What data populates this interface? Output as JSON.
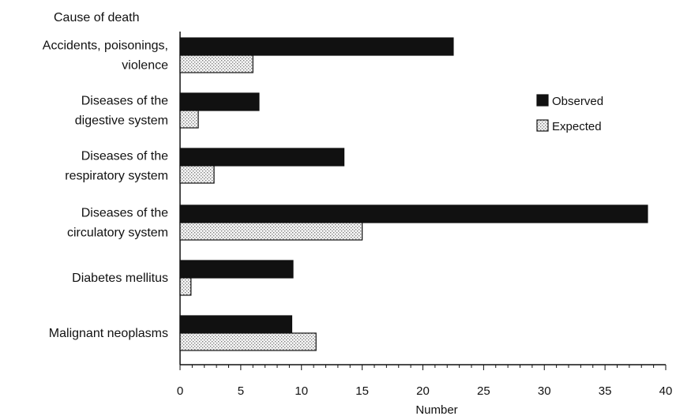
{
  "chart_data": {
    "type": "bar",
    "orientation": "horizontal",
    "y_title": "Cause of death",
    "xlabel": "Number",
    "xlim": [
      0,
      40
    ],
    "xticks": [
      0,
      5,
      10,
      15,
      20,
      25,
      30,
      35,
      40
    ],
    "categories": [
      [
        "Accidents, poisonings,",
        "violence"
      ],
      [
        "Diseases of the",
        "digestive system"
      ],
      [
        "Diseases of the",
        "respiratory system"
      ],
      [
        "Diseases of the",
        "circulatory system"
      ],
      [
        "Diabetes mellitus"
      ],
      [
        "Malignant neoplasms"
      ]
    ],
    "series": [
      {
        "name": "Observed",
        "values": [
          22.5,
          6.5,
          13.5,
          38.5,
          9.3,
          9.2
        ],
        "color": "#111111"
      },
      {
        "name": "Expected",
        "values": [
          6.0,
          1.5,
          2.8,
          15.0,
          0.9,
          11.2
        ],
        "color": "#d9d9d9"
      }
    ],
    "legend_position": "right",
    "grid": false
  }
}
